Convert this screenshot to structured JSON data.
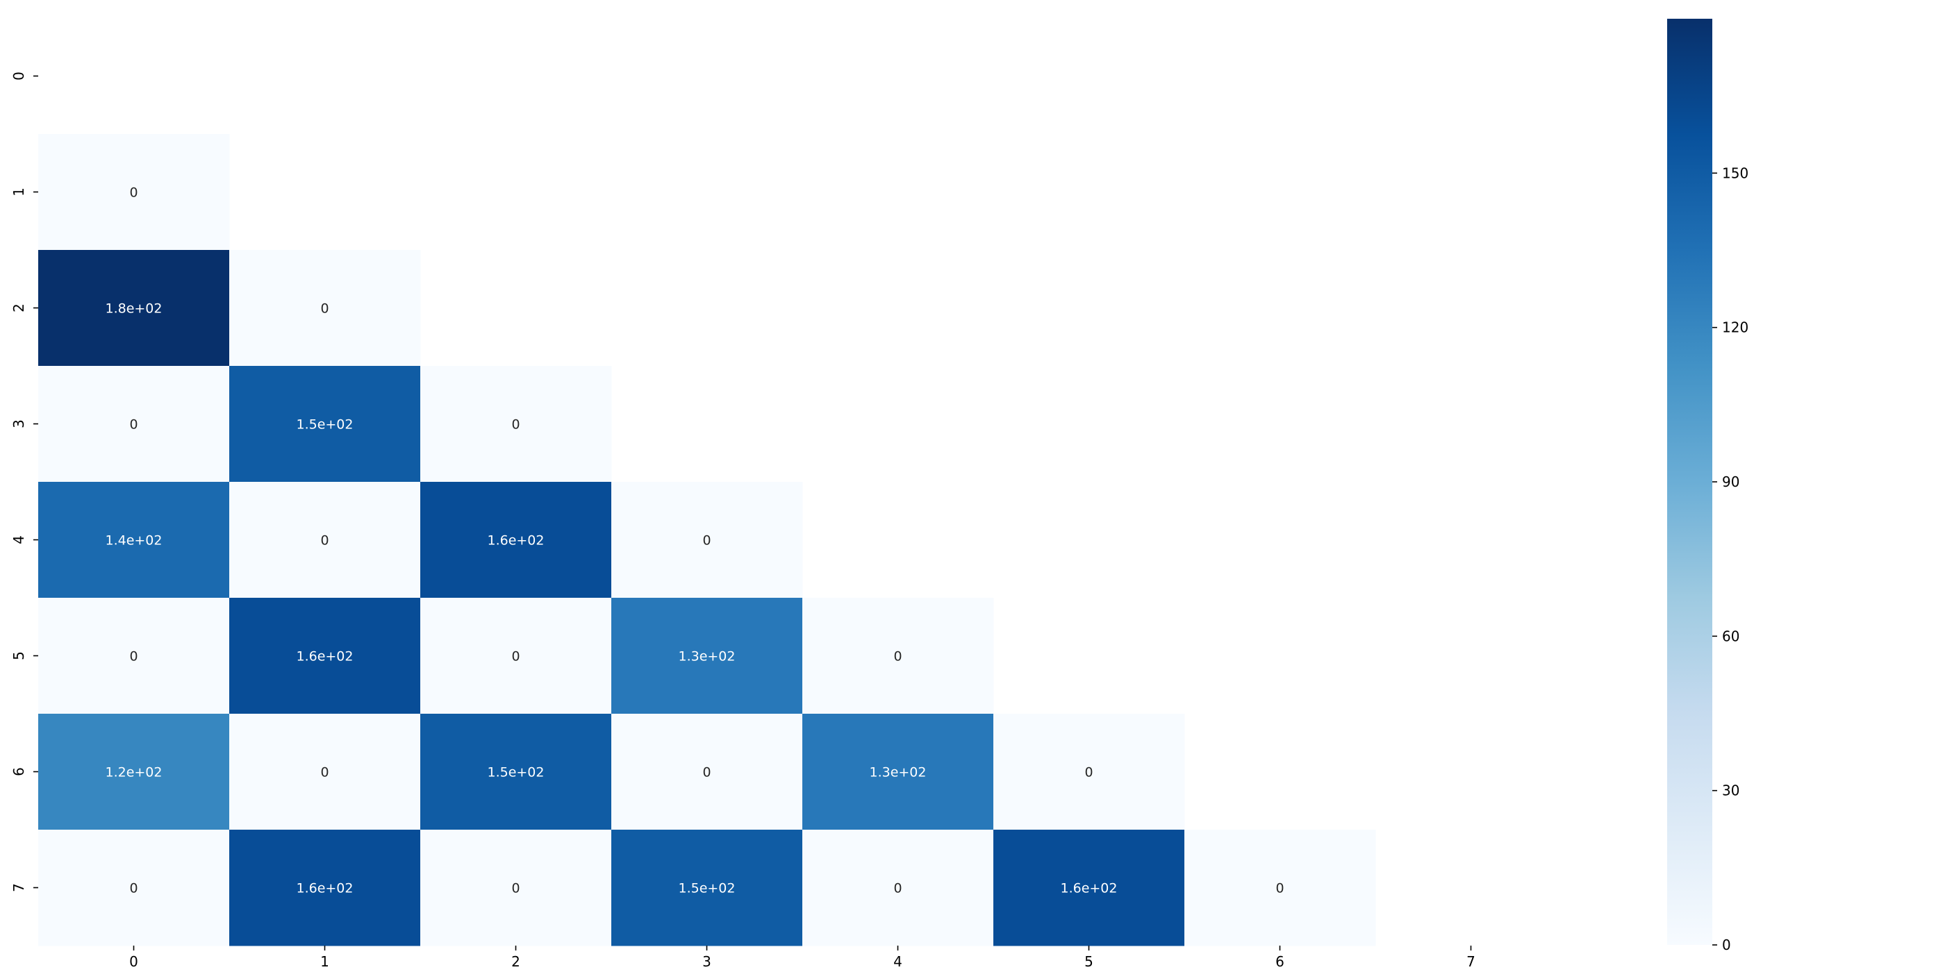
{
  "chart_data": {
    "type": "heatmap",
    "title": "",
    "xlabel": "",
    "ylabel": "",
    "x_ticks": [
      "0",
      "1",
      "2",
      "3",
      "4",
      "5",
      "6",
      "7"
    ],
    "y_ticks": [
      "0",
      "1",
      "2",
      "3",
      "4",
      "5",
      "6",
      "7"
    ],
    "mask": "upper triangle including diagonal",
    "cells": [
      {
        "row": 1,
        "col": 0,
        "value": 0,
        "label": "0"
      },
      {
        "row": 2,
        "col": 0,
        "value": 180,
        "label": "1.8e+02"
      },
      {
        "row": 2,
        "col": 1,
        "value": 0,
        "label": "0"
      },
      {
        "row": 3,
        "col": 0,
        "value": 0,
        "label": "0"
      },
      {
        "row": 3,
        "col": 1,
        "value": 150,
        "label": "1.5e+02"
      },
      {
        "row": 3,
        "col": 2,
        "value": 0,
        "label": "0"
      },
      {
        "row": 4,
        "col": 0,
        "value": 140,
        "label": "1.4e+02"
      },
      {
        "row": 4,
        "col": 1,
        "value": 0,
        "label": "0"
      },
      {
        "row": 4,
        "col": 2,
        "value": 160,
        "label": "1.6e+02"
      },
      {
        "row": 4,
        "col": 3,
        "value": 0,
        "label": "0"
      },
      {
        "row": 5,
        "col": 0,
        "value": 0,
        "label": "0"
      },
      {
        "row": 5,
        "col": 1,
        "value": 160,
        "label": "1.6e+02"
      },
      {
        "row": 5,
        "col": 2,
        "value": 0,
        "label": "0"
      },
      {
        "row": 5,
        "col": 3,
        "value": 130,
        "label": "1.3e+02"
      },
      {
        "row": 5,
        "col": 4,
        "value": 0,
        "label": "0"
      },
      {
        "row": 6,
        "col": 0,
        "value": 120,
        "label": "1.2e+02"
      },
      {
        "row": 6,
        "col": 1,
        "value": 0,
        "label": "0"
      },
      {
        "row": 6,
        "col": 2,
        "value": 150,
        "label": "1.5e+02"
      },
      {
        "row": 6,
        "col": 3,
        "value": 0,
        "label": "0"
      },
      {
        "row": 6,
        "col": 4,
        "value": 130,
        "label": "1.3e+02"
      },
      {
        "row": 6,
        "col": 5,
        "value": 0,
        "label": "0"
      },
      {
        "row": 7,
        "col": 0,
        "value": 0,
        "label": "0"
      },
      {
        "row": 7,
        "col": 1,
        "value": 160,
        "label": "1.6e+02"
      },
      {
        "row": 7,
        "col": 2,
        "value": 0,
        "label": "0"
      },
      {
        "row": 7,
        "col": 3,
        "value": 150,
        "label": "1.5e+02"
      },
      {
        "row": 7,
        "col": 4,
        "value": 0,
        "label": "0"
      },
      {
        "row": 7,
        "col": 5,
        "value": 160,
        "label": "1.6e+02"
      },
      {
        "row": 7,
        "col": 6,
        "value": 0,
        "label": "0"
      }
    ],
    "colorbar": {
      "min": 0,
      "max": 180,
      "ticks": [
        0,
        30,
        60,
        90,
        120,
        150
      ],
      "tick_labels": [
        "0",
        "30",
        "60",
        "90",
        "120",
        "150"
      ]
    },
    "colormap": "Blues",
    "colormap_stops": [
      "#f7fbff",
      "#deebf7",
      "#c6dbef",
      "#9ecae1",
      "#6baed6",
      "#4292c6",
      "#2171b5",
      "#08519c",
      "#08306b"
    ],
    "label_color_dark": "#262626",
    "label_color_light": "#ffffff"
  }
}
